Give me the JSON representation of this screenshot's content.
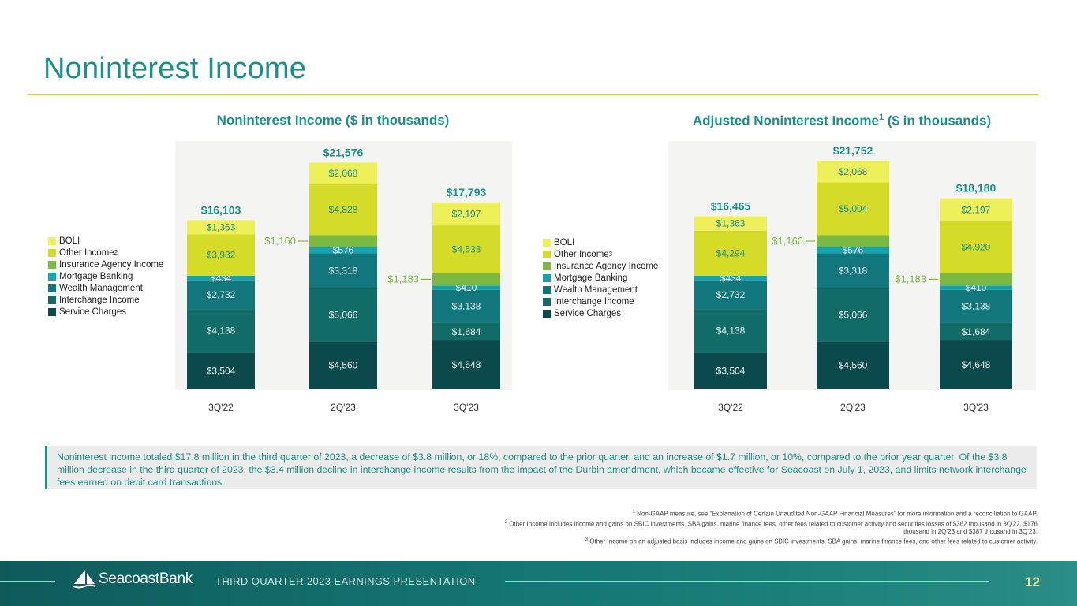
{
  "page": {
    "title": "Noninterest Income",
    "callout": "Noninterest income totaled $17.8 million in the third quarter of 2023, a decrease of $3.8 million, or 18%, compared to the prior quarter, and an increase of $1.7 million, or 10%, compared to the prior year quarter. Of the $3.8 million decrease in the third quarter of 2023, the $3.4 million decline in interchange income results from the impact of the Durbin amendment, which became effective for Seacoast on July 1, 2023, and limits network interchange fees earned on debit card transactions.",
    "footnotes": {
      "f1_num": "1",
      "f1": " Non-GAAP measure, see “Explanation of Certain Unaudited Non-GAAP Financial Measures” for more information and a reconciliation to GAAP.",
      "f2_num": "2",
      "f2": " Other Income includes income and gains on SBIC investments, SBA gains, marine finance fees,  other fees related to customer activity and securities losses of $362 thousand in 3Q’22,  $176 thousand in 2Q’23 and $387 thousand in 3Q’23.",
      "f3_num": "3",
      "f3": " Other Income on an adjusted basis includes income and gains on SBIC investments, SBA gains, marine finance fees, and other fees related to customer activity."
    },
    "footer": {
      "logo": "SeacoastBank",
      "label": "THIRD QUARTER 2023 EARNINGS PRESENTATION",
      "page_number": "12"
    }
  },
  "colors": {
    "teal_title": "#1b8f8a",
    "BOLI": "#eef05a",
    "Other Income": "#d4dc28",
    "Insurance Agency Income": "#7cb941",
    "Mortgage Banking": "#16a3b0",
    "Wealth Management": "#12777d",
    "Interchange Income": "#116b67",
    "Service Charges": "#0b4a4c",
    "callout_label": "#7cb941"
  },
  "chart_data": [
    {
      "type": "bar",
      "stacked": true,
      "title": "Noninterest Income ($ in thousands)",
      "categories": [
        "3Q'22",
        "2Q'23",
        "3Q'23"
      ],
      "legend": [
        "BOLI",
        "Other Income",
        "Insurance Agency Income",
        "Mortgage Banking",
        "Wealth Management",
        "Interchange Income",
        "Service Charges"
      ],
      "legend_superscript": "2",
      "series": [
        {
          "name": "Service Charges",
          "values": [
            3504,
            4560,
            4648
          ],
          "labels": [
            "$3,504",
            "$4,560",
            "$4,648"
          ]
        },
        {
          "name": "Interchange Income",
          "values": [
            4138,
            5066,
            1684
          ],
          "labels": [
            "$4,138",
            "$5,066",
            "$1,684"
          ]
        },
        {
          "name": "Wealth Management",
          "values": [
            2732,
            3318,
            3138
          ],
          "labels": [
            "$2,732",
            "$3,318",
            "$3,138"
          ]
        },
        {
          "name": "Mortgage Banking",
          "values": [
            434,
            576,
            410
          ],
          "labels": [
            "$434",
            "$576",
            "$410"
          ]
        },
        {
          "name": "Insurance Agency Income",
          "values": [
            0,
            1160,
            1183
          ],
          "labels": [
            "",
            "$1,160",
            "$1,183"
          ]
        },
        {
          "name": "Other Income",
          "values": [
            3932,
            4828,
            4533
          ],
          "labels": [
            "$3,932",
            "$4,828",
            "$4,533"
          ]
        },
        {
          "name": "BOLI",
          "values": [
            1363,
            2068,
            2197
          ],
          "labels": [
            "$1,363",
            "$2,068",
            "$2,197"
          ]
        }
      ],
      "totals": [
        "$16,103",
        "$21,576",
        "$17,793"
      ],
      "ylim": [
        0,
        23000
      ]
    },
    {
      "type": "bar",
      "stacked": true,
      "title": "Adjusted Noninterest Income",
      "title_superscript": "1",
      "title_suffix": " ($ in thousands)",
      "categories": [
        "3Q'22",
        "2Q'23",
        "3Q'23"
      ],
      "legend": [
        "BOLI",
        "Other Income",
        "Insurance Agency Income",
        "Mortgage Banking",
        "Wealth Management",
        "Interchange Income",
        "Service Charges"
      ],
      "legend_superscript": "3",
      "series": [
        {
          "name": "Service Charges",
          "values": [
            3504,
            4560,
            4648
          ],
          "labels": [
            "$3,504",
            "$4,560",
            "$4,648"
          ]
        },
        {
          "name": "Interchange Income",
          "values": [
            4138,
            5066,
            1684
          ],
          "labels": [
            "$4,138",
            "$5,066",
            "$1,684"
          ]
        },
        {
          "name": "Wealth Management",
          "values": [
            2732,
            3318,
            3138
          ],
          "labels": [
            "$2,732",
            "$3,318",
            "$3,138"
          ]
        },
        {
          "name": "Mortgage Banking",
          "values": [
            434,
            576,
            410
          ],
          "labels": [
            "$434",
            "$576",
            "$410"
          ]
        },
        {
          "name": "Insurance Agency Income",
          "values": [
            0,
            1160,
            1183
          ],
          "labels": [
            "",
            "$1,160",
            "$1,183"
          ]
        },
        {
          "name": "Other Income",
          "values": [
            4294,
            5004,
            4920
          ],
          "labels": [
            "$4,294",
            "$5,004",
            "$4,920"
          ]
        },
        {
          "name": "BOLI",
          "values": [
            1363,
            2068,
            2197
          ],
          "labels": [
            "$1,363",
            "$2,068",
            "$2,197"
          ]
        }
      ],
      "totals": [
        "$16,465",
        "$21,752",
        "$18,180"
      ],
      "ylim": [
        0,
        23000
      ]
    }
  ]
}
